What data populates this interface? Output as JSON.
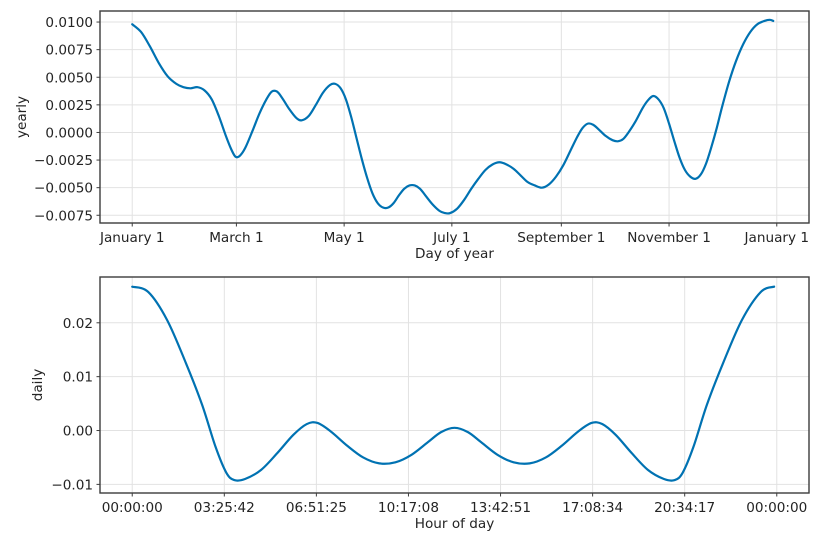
{
  "figure": {
    "background": "#ffffff"
  },
  "chart_data": [
    {
      "id": "yearly",
      "type": "line",
      "title": "",
      "xlabel": "Day of year",
      "ylabel": "yearly",
      "line_color": "#0072B2",
      "grid": true,
      "legend": "none",
      "xlim": [
        -18.25,
        383.25
      ],
      "ylim": [
        -0.0082,
        0.011
      ],
      "x_ticks": [
        {
          "value": 0,
          "label": "January 1"
        },
        {
          "value": 59,
          "label": "March 1"
        },
        {
          "value": 120,
          "label": "May 1"
        },
        {
          "value": 181,
          "label": "July 1"
        },
        {
          "value": 243,
          "label": "September 1"
        },
        {
          "value": 304,
          "label": "November 1"
        },
        {
          "value": 365,
          "label": "January 1"
        }
      ],
      "y_ticks": [
        {
          "value": 0.01,
          "label": "0.0100"
        },
        {
          "value": 0.0075,
          "label": "0.0075"
        },
        {
          "value": 0.005,
          "label": "0.0050"
        },
        {
          "value": 0.0025,
          "label": "0.0025"
        },
        {
          "value": 0.0,
          "label": "0.0000"
        },
        {
          "value": -0.0025,
          "label": "−0.0025"
        },
        {
          "value": -0.005,
          "label": "−0.0050"
        },
        {
          "value": -0.0075,
          "label": "−0.0075"
        }
      ],
      "points": [
        [
          0,
          0.0098
        ],
        [
          5,
          0.0091
        ],
        [
          10,
          0.0078
        ],
        [
          15,
          0.0063
        ],
        [
          20,
          0.0051
        ],
        [
          25,
          0.0044
        ],
        [
          29,
          0.0041
        ],
        [
          33,
          0.004
        ],
        [
          37,
          0.0041
        ],
        [
          41,
          0.0038
        ],
        [
          45,
          0.003
        ],
        [
          49,
          0.0015
        ],
        [
          53,
          -0.0003
        ],
        [
          56,
          -0.0015
        ],
        [
          58.5,
          -0.0022
        ],
        [
          61,
          -0.0021
        ],
        [
          64,
          -0.0014
        ],
        [
          68,
          0.0001
        ],
        [
          72,
          0.0017
        ],
        [
          76,
          0.003
        ],
        [
          79,
          0.0037
        ],
        [
          82,
          0.0037
        ],
        [
          85,
          0.0031
        ],
        [
          89,
          0.0021
        ],
        [
          93,
          0.0013
        ],
        [
          96,
          0.0011
        ],
        [
          100,
          0.0015
        ],
        [
          104,
          0.0025
        ],
        [
          108,
          0.0036
        ],
        [
          112,
          0.0043
        ],
        [
          115,
          0.0044
        ],
        [
          118,
          0.004
        ],
        [
          121,
          0.003
        ],
        [
          124,
          0.0014
        ],
        [
          127,
          -0.0005
        ],
        [
          130,
          -0.0024
        ],
        [
          133,
          -0.0041
        ],
        [
          136,
          -0.0055
        ],
        [
          139,
          -0.0064
        ],
        [
          142,
          -0.0068
        ],
        [
          145,
          -0.0068
        ],
        [
          148,
          -0.0064
        ],
        [
          151,
          -0.0057
        ],
        [
          154,
          -0.0051
        ],
        [
          157,
          -0.0048
        ],
        [
          160,
          -0.0048
        ],
        [
          163,
          -0.0051
        ],
        [
          166,
          -0.0057
        ],
        [
          170,
          -0.0065
        ],
        [
          174,
          -0.0071
        ],
        [
          177,
          -0.0073
        ],
        [
          180,
          -0.0073
        ],
        [
          184,
          -0.0069
        ],
        [
          188,
          -0.0061
        ],
        [
          192,
          -0.0051
        ],
        [
          196,
          -0.0042
        ],
        [
          200,
          -0.0034
        ],
        [
          204,
          -0.0029
        ],
        [
          208,
          -0.0027
        ],
        [
          212,
          -0.0029
        ],
        [
          216,
          -0.0033
        ],
        [
          220,
          -0.0039
        ],
        [
          224,
          -0.0045
        ],
        [
          228,
          -0.0048
        ],
        [
          232,
          -0.005
        ],
        [
          236,
          -0.0047
        ],
        [
          240,
          -0.004
        ],
        [
          244,
          -0.003
        ],
        [
          248,
          -0.0017
        ],
        [
          252,
          -0.0004
        ],
        [
          255,
          0.0004
        ],
        [
          258,
          0.0008
        ],
        [
          261,
          0.0007
        ],
        [
          264,
          0.0003
        ],
        [
          268,
          -0.0003
        ],
        [
          272,
          -0.0007
        ],
        [
          275,
          -0.0008
        ],
        [
          278,
          -0.0006
        ],
        [
          281,
          0.0
        ],
        [
          285,
          0.001
        ],
        [
          289,
          0.0022
        ],
        [
          292,
          0.0029
        ],
        [
          295,
          0.0033
        ],
        [
          298,
          0.003
        ],
        [
          301,
          0.0022
        ],
        [
          304,
          0.0008
        ],
        [
          307,
          -0.0008
        ],
        [
          310,
          -0.0023
        ],
        [
          313,
          -0.0034
        ],
        [
          316,
          -0.004
        ],
        [
          319,
          -0.0042
        ],
        [
          322,
          -0.0038
        ],
        [
          325,
          -0.0028
        ],
        [
          328,
          -0.0013
        ],
        [
          331,
          0.0004
        ],
        [
          334,
          0.0023
        ],
        [
          338,
          0.0046
        ],
        [
          342,
          0.0065
        ],
        [
          346,
          0.008
        ],
        [
          350,
          0.0091
        ],
        [
          354,
          0.0098
        ],
        [
          358,
          0.0101
        ],
        [
          361,
          0.0102
        ],
        [
          363,
          0.0101
        ]
      ]
    },
    {
      "id": "daily",
      "type": "line",
      "title": "",
      "xlabel": "Hour of day",
      "ylabel": "daily",
      "line_color": "#0072B2",
      "grid": true,
      "legend": "none",
      "xlim": [
        -1.2,
        25.2
      ],
      "ylim": [
        -0.0116,
        0.0285
      ],
      "x_ticks": [
        {
          "value": 0,
          "label": "00:00:00"
        },
        {
          "value": 3.428571,
          "label": "03:25:42"
        },
        {
          "value": 6.857143,
          "label": "06:51:25"
        },
        {
          "value": 10.285714,
          "label": "10:17:08"
        },
        {
          "value": 13.714286,
          "label": "13:42:51"
        },
        {
          "value": 17.142857,
          "label": "17:08:34"
        },
        {
          "value": 20.571429,
          "label": "20:34:17"
        },
        {
          "value": 24,
          "label": "00:00:00"
        }
      ],
      "y_ticks": [
        {
          "value": 0.02,
          "label": "0.02"
        },
        {
          "value": 0.01,
          "label": "0.01"
        },
        {
          "value": 0.0,
          "label": "0.00"
        },
        {
          "value": -0.01,
          "label": "−0.01"
        }
      ],
      "points": [
        [
          0,
          0.0267
        ],
        [
          0.6,
          0.0257
        ],
        [
          1.3,
          0.0205
        ],
        [
          2.0,
          0.0125
        ],
        [
          2.6,
          0.0048
        ],
        [
          3.1,
          -0.003
        ],
        [
          3.5,
          -0.0078
        ],
        [
          3.8,
          -0.0092
        ],
        [
          4.2,
          -0.009
        ],
        [
          4.8,
          -0.0073
        ],
        [
          5.4,
          -0.0042
        ],
        [
          6.0,
          -0.0008
        ],
        [
          6.5,
          0.0012
        ],
        [
          6.9,
          0.0014
        ],
        [
          7.4,
          -0.0002
        ],
        [
          8.0,
          -0.0028
        ],
        [
          8.6,
          -0.005
        ],
        [
          9.2,
          -0.0061
        ],
        [
          9.8,
          -0.0059
        ],
        [
          10.4,
          -0.0045
        ],
        [
          11.0,
          -0.0022
        ],
        [
          11.5,
          -0.0003
        ],
        [
          12.0,
          0.0005
        ],
        [
          12.5,
          -0.0003
        ],
        [
          13.0,
          -0.0022
        ],
        [
          13.6,
          -0.0045
        ],
        [
          14.2,
          -0.0059
        ],
        [
          14.8,
          -0.0061
        ],
        [
          15.4,
          -0.005
        ],
        [
          16.0,
          -0.0028
        ],
        [
          16.6,
          -0.0002
        ],
        [
          17.1,
          0.0014
        ],
        [
          17.5,
          0.0012
        ],
        [
          18.0,
          -0.0008
        ],
        [
          18.6,
          -0.0042
        ],
        [
          19.2,
          -0.0073
        ],
        [
          19.8,
          -0.009
        ],
        [
          20.2,
          -0.0092
        ],
        [
          20.5,
          -0.0078
        ],
        [
          20.9,
          -0.003
        ],
        [
          21.4,
          0.0048
        ],
        [
          22.0,
          0.0125
        ],
        [
          22.7,
          0.0205
        ],
        [
          23.4,
          0.0257
        ],
        [
          23.9,
          0.0267
        ]
      ]
    }
  ]
}
